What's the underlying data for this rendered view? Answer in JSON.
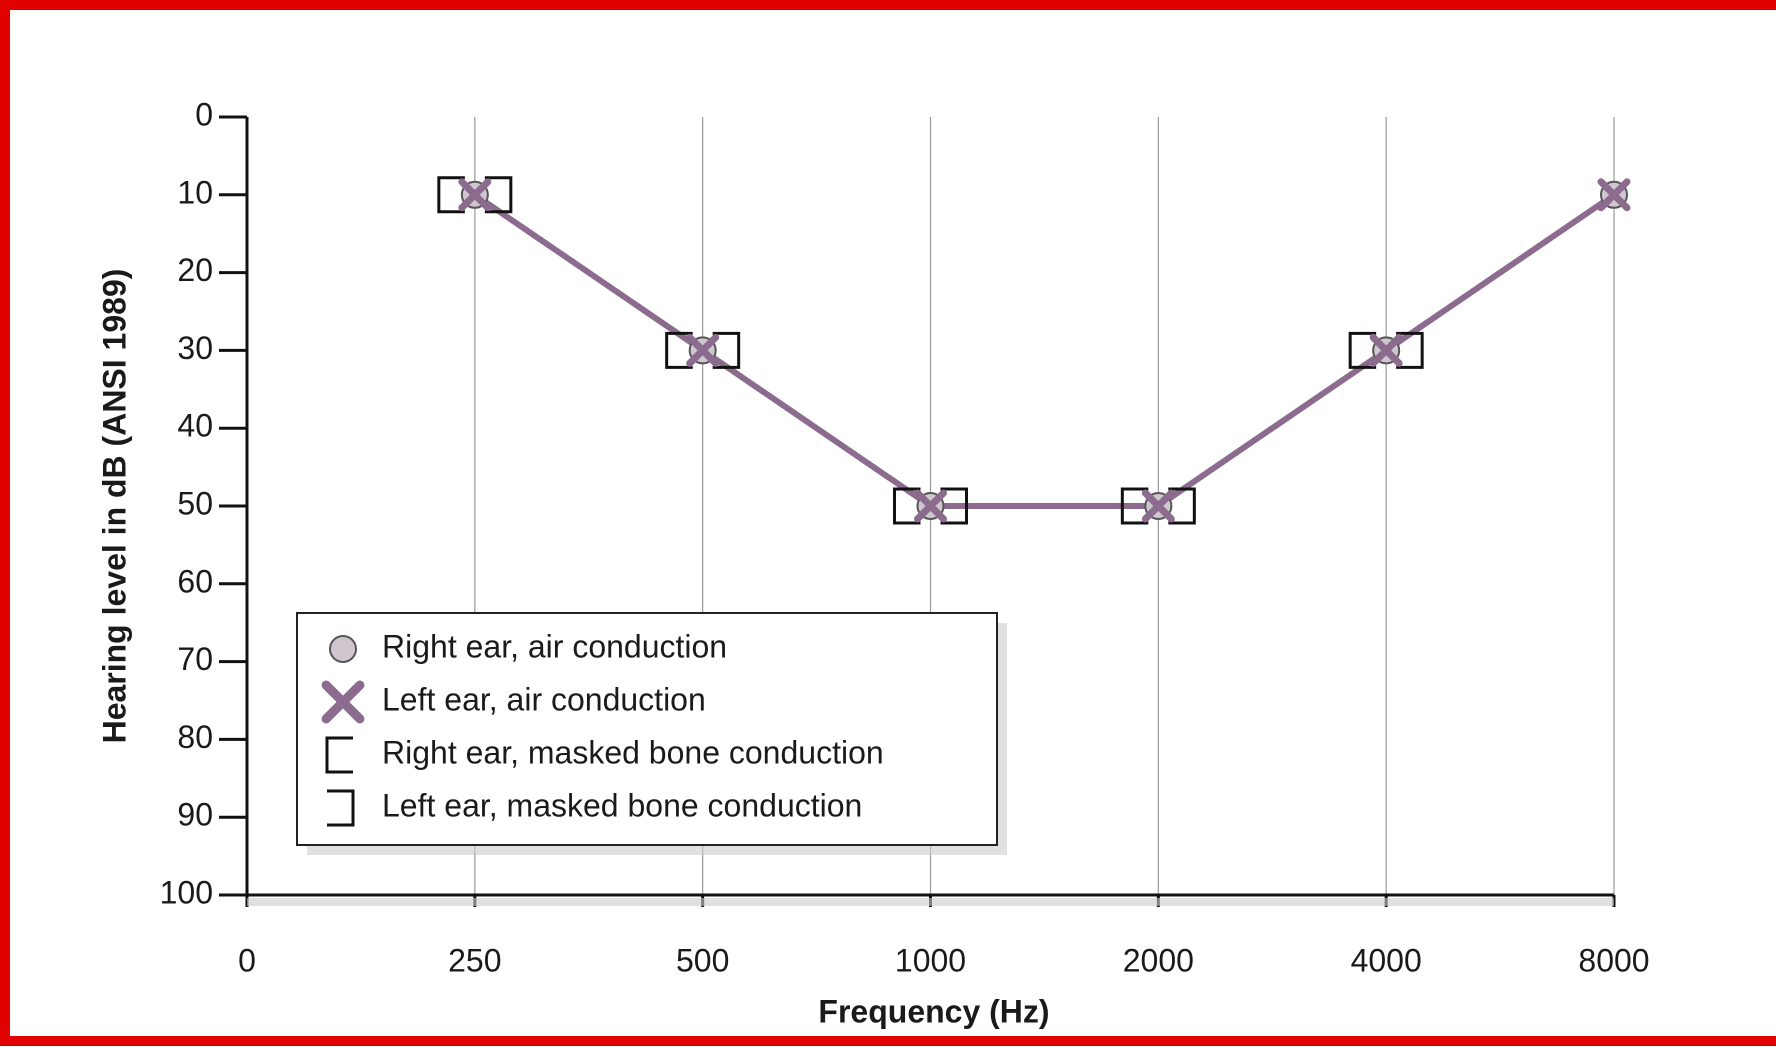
{
  "chart_data": {
    "type": "line",
    "x_label": "Frequency (Hz)",
    "y_label": "Hearing level  in dB (ANSI 1989)",
    "categories": [
      "0",
      "250",
      "500",
      "1000",
      "2000",
      "4000",
      "8000"
    ],
    "ylim": [
      0,
      100
    ],
    "y_inverted": true,
    "yticks": [
      0,
      10,
      20,
      30,
      40,
      50,
      60,
      70,
      80,
      90,
      100
    ],
    "grid": true,
    "legend": "lower left",
    "line_color": "#8b6b8e",
    "series": [
      {
        "name": "Right ear, air conduction",
        "marker": "circle",
        "color": "#cfc6d0",
        "values": [
          null,
          10,
          30,
          50,
          50,
          30,
          10
        ]
      },
      {
        "name": "Left ear, air conduction",
        "marker": "x",
        "color": "#8b6b8e",
        "values": [
          null,
          10,
          30,
          50,
          50,
          30,
          10
        ]
      },
      {
        "name": "Right ear, masked bone conduction",
        "marker": "bracket-left",
        "color": "#111111",
        "values": [
          null,
          10,
          30,
          50,
          50,
          30,
          null
        ]
      },
      {
        "name": "Left ear, masked bone conduction",
        "marker": "bracket-right",
        "color": "#111111",
        "values": [
          null,
          10,
          30,
          50,
          50,
          30,
          null
        ]
      }
    ]
  }
}
